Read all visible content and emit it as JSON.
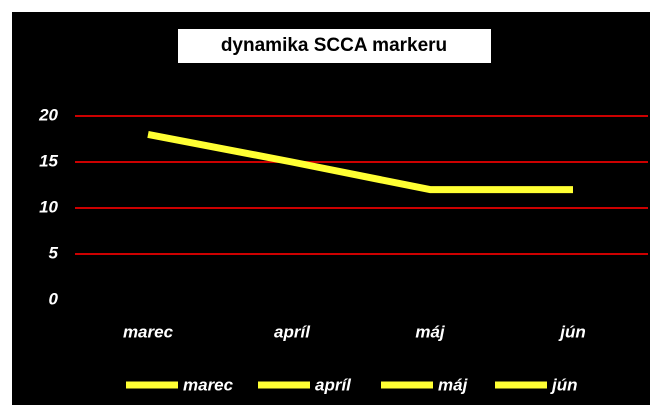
{
  "chart_data": {
    "type": "line",
    "title": "dynamika SCCA markeru",
    "categories": [
      "marec",
      "apríl",
      "máj",
      "jún"
    ],
    "values": [
      18,
      15,
      12,
      12
    ],
    "color": "#ffff33",
    "ylim": [
      0,
      20
    ],
    "yticks": [
      0,
      5,
      10,
      15,
      20
    ],
    "grid": true,
    "grid_color": "#cc0000",
    "background": "#000000"
  }
}
